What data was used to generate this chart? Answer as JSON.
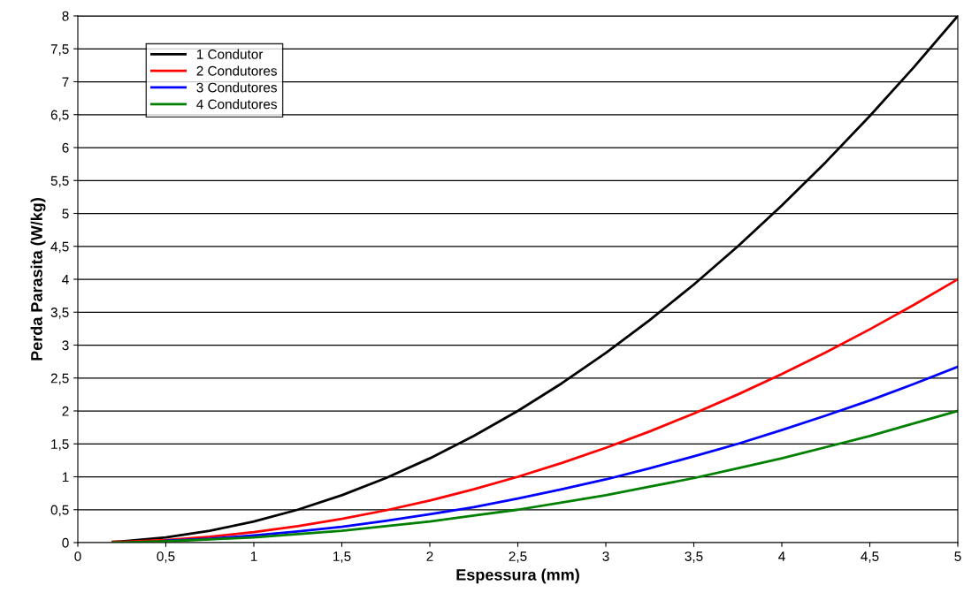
{
  "chart_data": {
    "type": "line",
    "xlabel": "Espessura (mm)",
    "ylabel": "Perda Parasita (W/kg)",
    "x": [
      0.2,
      0.25,
      0.5,
      0.75,
      1,
      1.25,
      1.5,
      1.75,
      2,
      2.25,
      2.5,
      2.75,
      3,
      3.25,
      3.5,
      3.75,
      4,
      4.25,
      4.5,
      4.75,
      5
    ],
    "series": [
      {
        "name": "1 Condutor",
        "color": "#000000",
        "values": [
          0.01,
          0.02,
          0.08,
          0.18,
          0.32,
          0.5,
          0.72,
          0.98,
          1.28,
          1.62,
          2.0,
          2.42,
          2.88,
          3.38,
          3.92,
          4.5,
          5.12,
          5.78,
          6.48,
          7.22,
          8
        ]
      },
      {
        "name": "2 Condutores",
        "color": "#ff0000",
        "values": [
          0.01,
          0.01,
          0.04,
          0.09,
          0.16,
          0.25,
          0.36,
          0.49,
          0.64,
          0.81,
          1.0,
          1.21,
          1.44,
          1.69,
          1.96,
          2.25,
          2.56,
          2.89,
          3.24,
          3.61,
          4
        ]
      },
      {
        "name": "3 Condutores",
        "color": "#0000ff",
        "values": [
          null,
          null,
          0.03,
          0.06,
          0.11,
          0.17,
          0.24,
          0.33,
          0.43,
          0.54,
          0.67,
          0.81,
          0.96,
          1.13,
          1.31,
          1.5,
          1.71,
          1.93,
          2.16,
          2.41,
          2.67
        ]
      },
      {
        "name": "4 Condutores",
        "color": "#008000",
        "values": [
          0,
          0,
          0.02,
          0.05,
          0.08,
          0.13,
          0.18,
          0.25,
          0.32,
          0.41,
          0.5,
          0.61,
          0.72,
          0.85,
          0.98,
          1.13,
          1.28,
          1.45,
          1.62,
          1.81,
          2
        ]
      }
    ],
    "xlim": [
      0,
      5
    ],
    "ylim": [
      0,
      8
    ],
    "xticks": [
      0,
      {
        "value": 0.5,
        "label": "0,5"
      },
      1,
      {
        "value": 1.5,
        "label": "1,5"
      },
      2,
      {
        "value": 2.5,
        "label": "2,5"
      },
      3,
      {
        "value": 3.5,
        "label": "3,5"
      },
      4,
      {
        "value": 4.5,
        "label": "4,5"
      },
      5
    ],
    "yticks": [
      0,
      {
        "value": 0.5,
        "label": "0,5"
      },
      1,
      {
        "value": 1.5,
        "label": "1,5"
      },
      2,
      {
        "value": 2.5,
        "label": "2,5"
      },
      3,
      {
        "value": 3.5,
        "label": "3,5"
      },
      4,
      {
        "value": 4.5,
        "label": "4,5"
      },
      5,
      {
        "value": 5.5,
        "label": "5,5"
      },
      6,
      {
        "value": 6.5,
        "label": "6,5"
      },
      7,
      {
        "value": 7.5,
        "label": "7,5"
      },
      8
    ],
    "grid": "y",
    "legend": "top left",
    "marker": "none",
    "line_style": "solid"
  }
}
